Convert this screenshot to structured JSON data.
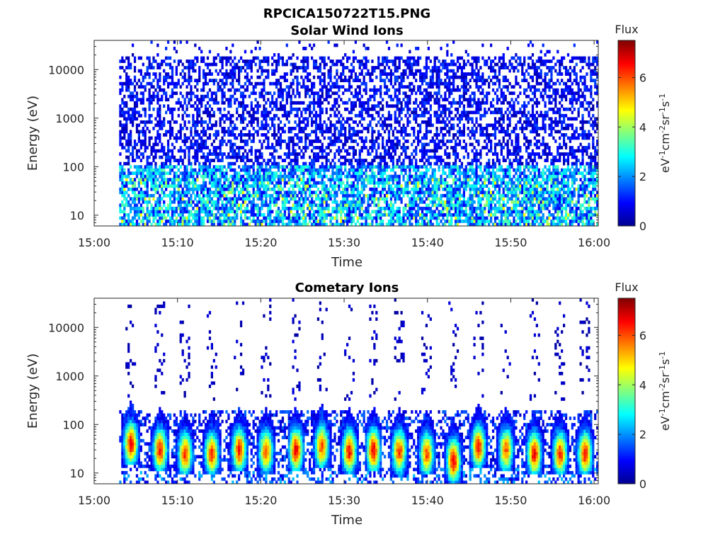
{
  "figure_title": "RPCICA150722T15.PNG",
  "colormap": [
    "#00008f",
    "#0000ff",
    "#0080ff",
    "#00ffff",
    "#80ff80",
    "#ffff00",
    "#ff8000",
    "#ff0000",
    "#800000"
  ],
  "chart_data": [
    {
      "type": "heatmap",
      "title": "Solar Wind Ions",
      "xlabel": "Time",
      "ylabel": "Energy (eV)",
      "x_tick_labels": [
        "15:00",
        "15:10",
        "15:20",
        "15:30",
        "15:40",
        "15:50",
        "16:00"
      ],
      "x_ticks_min": [
        0,
        10,
        20,
        30,
        40,
        50,
        60
      ],
      "xlim_min": [
        0,
        60.5
      ],
      "y_scale": "log",
      "y_ticks": [
        10,
        100,
        1000,
        10000
      ],
      "y_tick_labels": [
        "10",
        "100",
        "1000",
        "10000"
      ],
      "ylim": [
        6,
        40000
      ],
      "data_start_min": 3,
      "data_end_min": 60.5,
      "colorbar": {
        "label": "Flux",
        "units": "eV-1cm-2sr-1s-1",
        "range": [
          0,
          7.5
        ],
        "ticks": [
          0,
          2,
          4,
          6
        ],
        "tick_labels": [
          "0",
          "2",
          "4",
          "6"
        ]
      },
      "pattern": "dense low-flux (0-2) across 100 eV-20 keV, moderate flux (2-4) streaks below 100 eV"
    },
    {
      "type": "heatmap",
      "title": "Cometary Ions",
      "xlabel": "Time",
      "ylabel": "Energy (eV)",
      "x_tick_labels": [
        "15:00",
        "15:10",
        "15:20",
        "15:30",
        "15:40",
        "15:50",
        "16:00"
      ],
      "x_ticks_min": [
        0,
        10,
        20,
        30,
        40,
        50,
        60
      ],
      "xlim_min": [
        0,
        60.5
      ],
      "y_scale": "log",
      "y_ticks": [
        10,
        100,
        1000,
        10000
      ],
      "y_tick_labels": [
        "10",
        "100",
        "1000",
        "10000"
      ],
      "ylim": [
        6,
        40000
      ],
      "data_start_min": 3,
      "data_end_min": 60.5,
      "colorbar": {
        "label": "Flux",
        "units": "eV-1cm-2sr-1s-1",
        "range": [
          0,
          7.5
        ],
        "ticks": [
          0,
          2,
          4,
          6
        ],
        "tick_labels": [
          "0",
          "2",
          "4",
          "6"
        ]
      },
      "burst_times_min": [
        4.3,
        7.8,
        10.8,
        14,
        17.3,
        20.5,
        24.1,
        27.2,
        30.5,
        33.4,
        36.5,
        39.8,
        43,
        46,
        49.3,
        52.7,
        55.8,
        58.8
      ],
      "burst_peak_flux": [
        6.2,
        6.0,
        5.8,
        5.8,
        6.0,
        5.6,
        6.3,
        5.7,
        6.1,
        6.3,
        5.8,
        5.6,
        6.4,
        6.0,
        5.5,
        6.2,
        5.9,
        6.0
      ],
      "burst_peak_energy_ev": [
        40,
        30,
        25,
        25,
        30,
        28,
        30,
        35,
        28,
        30,
        28,
        25,
        18,
        35,
        30,
        25,
        25,
        25
      ]
    }
  ]
}
